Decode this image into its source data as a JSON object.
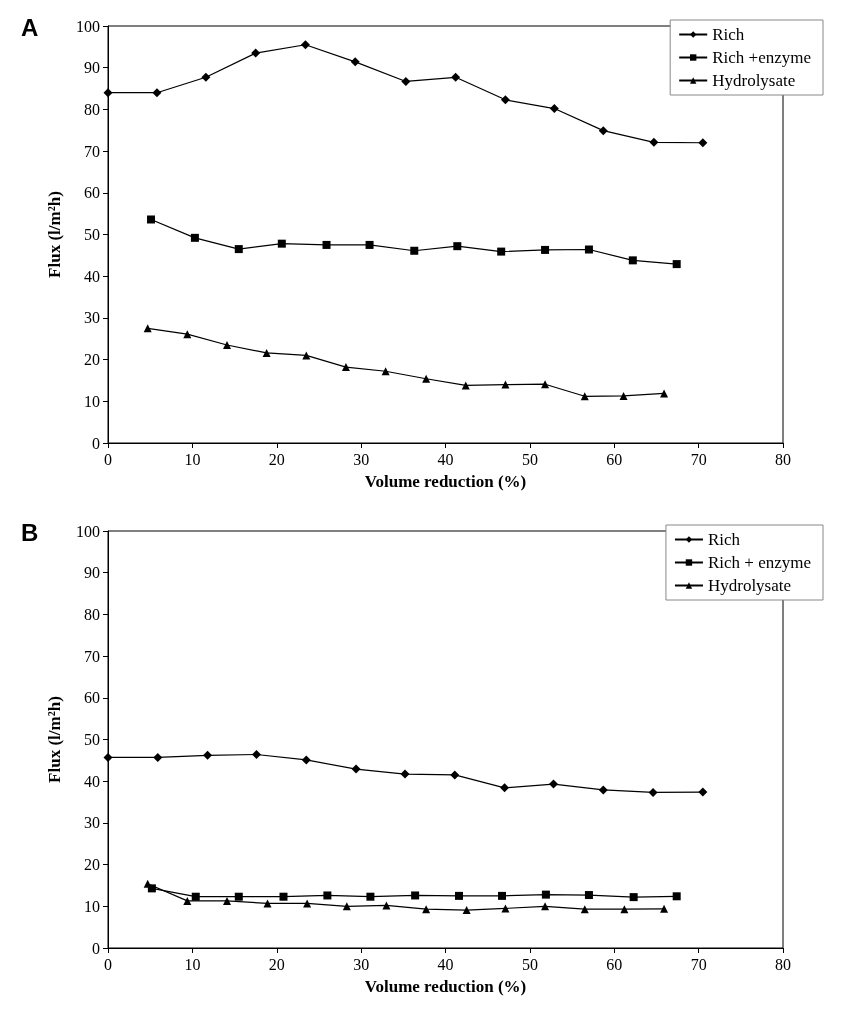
{
  "chart_data": [
    {
      "type": "line",
      "title": "A",
      "xlabel": "Volume reduction (%)",
      "ylabel": "Flux (l/m²h)",
      "xlim": [
        0,
        80
      ],
      "xticks": [
        0,
        10,
        20,
        30,
        40,
        50,
        60,
        70,
        80
      ],
      "ylim": [
        0,
        100
      ],
      "yticks": [
        0,
        10,
        20,
        30,
        40,
        50,
        60,
        70,
        80,
        90,
        100
      ],
      "grid": false,
      "legend": "top right",
      "series": [
        {
          "name": "Rich",
          "color": "#000000",
          "marker": "diamond",
          "x": [
            0,
            5.8,
            11.6,
            17.5,
            23.4,
            29.3,
            35.3,
            41.2,
            47.1,
            52.9,
            58.7,
            64.7,
            70.5
          ],
          "values": [
            84.0,
            84.0,
            87.7,
            93.5,
            95.5,
            91.4,
            86.7,
            87.7,
            82.3,
            80.2,
            74.9,
            72.1,
            72.0
          ]
        },
        {
          "name": "Rich +enzyme",
          "color": "#000000",
          "marker": "square",
          "x": [
            5.1,
            10.3,
            15.5,
            20.6,
            25.9,
            31.0,
            36.3,
            41.4,
            46.6,
            51.8,
            57.0,
            62.2,
            67.4
          ],
          "values": [
            53.6,
            49.2,
            46.5,
            47.8,
            47.5,
            47.5,
            46.1,
            47.2,
            45.9,
            46.3,
            46.4,
            43.8,
            42.9
          ]
        },
        {
          "name": "Hydrolysate",
          "color": "#000000",
          "marker": "triangle",
          "x": [
            4.7,
            9.4,
            14.1,
            18.8,
            23.5,
            28.2,
            32.9,
            37.7,
            42.4,
            47.1,
            51.8,
            56.5,
            61.1,
            65.9
          ],
          "values": [
            27.5,
            26.1,
            23.5,
            21.6,
            21.0,
            18.2,
            17.2,
            15.4,
            13.8,
            14.0,
            14.1,
            11.2,
            11.3,
            11.9
          ]
        }
      ]
    },
    {
      "type": "line",
      "title": "B",
      "xlabel": "Volume reduction (%)",
      "ylabel": "Flux (l/m²h)",
      "xlim": [
        0,
        80
      ],
      "xticks": [
        0,
        10,
        20,
        30,
        40,
        50,
        60,
        70,
        80
      ],
      "ylim": [
        0,
        100
      ],
      "yticks": [
        0,
        10,
        20,
        30,
        40,
        50,
        60,
        70,
        80,
        90,
        100
      ],
      "grid": false,
      "legend": "top right",
      "series": [
        {
          "name": "Rich",
          "color": "#000000",
          "marker": "diamond",
          "x": [
            0,
            5.9,
            11.8,
            17.6,
            23.5,
            29.4,
            35.2,
            41.1,
            47.0,
            52.8,
            58.7,
            64.6,
            70.5
          ],
          "values": [
            45.7,
            45.7,
            46.2,
            46.4,
            45.1,
            42.9,
            41.7,
            41.5,
            38.4,
            39.3,
            37.9,
            37.3,
            37.4
          ]
        },
        {
          "name": "Rich + enzyme",
          "color": "#000000",
          "marker": "square",
          "x": [
            5.2,
            10.4,
            15.5,
            20.8,
            26.0,
            31.1,
            36.4,
            41.6,
            46.7,
            51.9,
            57.0,
            62.3,
            67.4
          ],
          "values": [
            14.3,
            12.3,
            12.3,
            12.3,
            12.6,
            12.3,
            12.6,
            12.5,
            12.5,
            12.8,
            12.7,
            12.2,
            12.4
          ]
        },
        {
          "name": "Hydrolysate",
          "color": "#000000",
          "marker": "triangle",
          "x": [
            4.7,
            9.4,
            14.1,
            18.9,
            23.6,
            28.3,
            33.0,
            37.7,
            42.5,
            47.1,
            51.8,
            56.5,
            61.2,
            65.9
          ],
          "values": [
            15.4,
            11.3,
            11.3,
            10.7,
            10.7,
            10.0,
            10.2,
            9.3,
            9.1,
            9.5,
            10.0,
            9.3,
            9.3,
            9.4
          ]
        }
      ]
    }
  ]
}
